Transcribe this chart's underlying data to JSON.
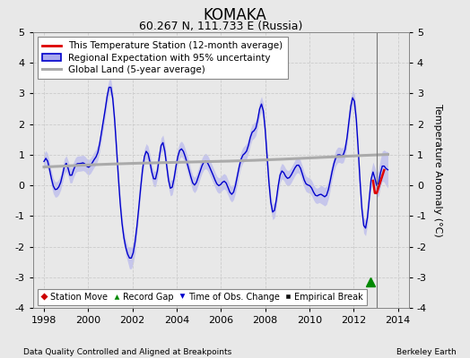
{
  "title": "KOMAKA",
  "subtitle": "60.267 N, 111.733 E (Russia)",
  "ylabel": "Temperature Anomaly (°C)",
  "xlabel_bottom_left": "Data Quality Controlled and Aligned at Breakpoints",
  "xlabel_bottom_right": "Berkeley Earth",
  "xlim": [
    1997.5,
    2014.5
  ],
  "ylim": [
    -4,
    5
  ],
  "yticks": [
    -4,
    -3,
    -2,
    -1,
    0,
    1,
    2,
    3,
    4,
    5
  ],
  "xticks": [
    1998,
    2000,
    2002,
    2004,
    2006,
    2008,
    2010,
    2012,
    2014
  ],
  "background_color": "#e8e8e8",
  "plot_bg_color": "#e8e8e8",
  "legend_labels": [
    "This Temperature Station (12-month average)",
    "Regional Expectation with 95% uncertainty",
    "Global Land (5-year average)"
  ],
  "regional_color": "#0000cc",
  "regional_fill_color": "#aaaaee",
  "station_color": "#dd0000",
  "global_color": "#aaaaaa",
  "vertical_line_x": 2013.05,
  "vertical_line_color": "#777777",
  "record_gap_x": 2012.75,
  "record_gap_y": -3.15,
  "title_fontsize": 12,
  "subtitle_fontsize": 9,
  "tick_fontsize": 8,
  "legend_fontsize": 7.5,
  "marker_legend_fontsize": 7
}
